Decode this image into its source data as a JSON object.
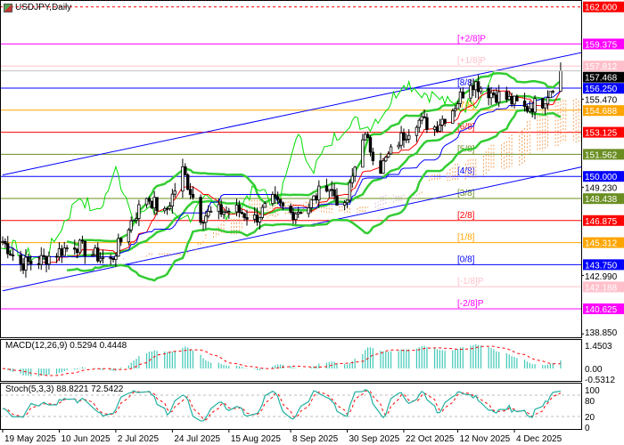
{
  "title": "USDJPY,Daily",
  "chart_data": {
    "type": "candlestick",
    "symbol": "USDJPY",
    "timeframe": "Daily",
    "price_range": [
      138.85,
      162.0
    ],
    "current_price": "157.468",
    "closes": [
      {
        "date": "2025-05-19",
        "close": 145.4
      },
      {
        "date": "2025-05-26",
        "close": 143.8
      },
      {
        "date": "2025-06-02",
        "close": 144.0
      },
      {
        "date": "2025-06-09",
        "close": 144.6
      },
      {
        "date": "2025-06-16",
        "close": 145.2
      },
      {
        "date": "2025-06-23",
        "close": 144.5
      },
      {
        "date": "2025-06-30",
        "close": 144.0
      },
      {
        "date": "2025-07-07",
        "close": 146.5
      },
      {
        "date": "2025-07-14",
        "close": 148.6
      },
      {
        "date": "2025-07-21",
        "close": 147.3
      },
      {
        "date": "2025-07-28",
        "close": 150.4
      },
      {
        "date": "2025-08-04",
        "close": 147.2
      },
      {
        "date": "2025-08-11",
        "close": 147.5
      },
      {
        "date": "2025-08-18",
        "close": 147.6
      },
      {
        "date": "2025-08-25",
        "close": 147.0
      },
      {
        "date": "2025-09-01",
        "close": 148.2
      },
      {
        "date": "2025-09-08",
        "close": 147.4
      },
      {
        "date": "2025-09-15",
        "close": 147.9
      },
      {
        "date": "2025-09-22",
        "close": 149.5
      },
      {
        "date": "2025-09-29",
        "close": 147.6
      },
      {
        "date": "2025-10-06",
        "close": 153.0
      },
      {
        "date": "2025-10-13",
        "close": 150.6
      },
      {
        "date": "2025-10-20",
        "close": 152.5
      },
      {
        "date": "2025-10-27",
        "close": 154.0
      },
      {
        "date": "2025-11-03",
        "close": 153.5
      },
      {
        "date": "2025-11-10",
        "close": 154.8
      },
      {
        "date": "2025-11-17",
        "close": 156.8
      },
      {
        "date": "2025-11-24",
        "close": 156.0
      },
      {
        "date": "2025-12-01",
        "close": 155.5
      },
      {
        "date": "2025-12-08",
        "close": 154.8
      },
      {
        "date": "2025-12-15",
        "close": 155.3
      },
      {
        "date": "2025-12-22",
        "close": 157.47
      }
    ],
    "murrey_levels": [
      {
        "price": 162.0,
        "label": "162.000",
        "tag": "",
        "color": "#ff0000",
        "dashed": true
      },
      {
        "price": 159.375,
        "label": "159.375",
        "tag": "[+2/8]P",
        "color": "#ff00ff"
      },
      {
        "price": 157.812,
        "label": "157.812",
        "tag": "[+1/8]P",
        "color": "#ffc0cb"
      },
      {
        "price": 156.25,
        "label": "156.250",
        "tag": "[8/8]",
        "color": "#0000ff"
      },
      {
        "price": 154.688,
        "label": "154.688",
        "tag": "[7/8]",
        "color": "#ffa500"
      },
      {
        "price": 153.125,
        "label": "153.125",
        "tag": "[6/8]",
        "color": "#ff0000"
      },
      {
        "price": 151.562,
        "label": "151.562",
        "tag": "[5/8]",
        "color": "#6b8e23"
      },
      {
        "price": 150.0,
        "label": "150.000",
        "tag": "[4/8]",
        "color": "#0000ff"
      },
      {
        "price": 148.438,
        "label": "148.438",
        "tag": "[3/8]",
        "color": "#6b8e23"
      },
      {
        "price": 146.875,
        "label": "146.875",
        "tag": "[2/8]",
        "color": "#ff0000"
      },
      {
        "price": 145.312,
        "label": "145.312",
        "tag": "[1/8]",
        "color": "#ffa500"
      },
      {
        "price": 143.75,
        "label": "143.750",
        "tag": "[0/8]",
        "color": "#0000ff"
      },
      {
        "price": 142.188,
        "label": "142.188",
        "tag": "[-1/8]P",
        "color": "#ffc0cb"
      },
      {
        "price": 140.625,
        "label": "140.625",
        "tag": "[-2/8]P",
        "color": "#ff00ff"
      }
    ],
    "price_ticks": [
      "155.470",
      "149.230",
      "142.990",
      "138.850"
    ],
    "trendlines": [
      {
        "from": {
          "date": "2025-05-19",
          "price": 150.1
        },
        "to": {
          "date": "2025-12-31",
          "price": 158.8
        },
        "color": "#0000ff"
      },
      {
        "from": {
          "date": "2025-05-19",
          "price": 141.9
        },
        "to": {
          "date": "2025-12-31",
          "price": 150.7
        },
        "color": "#0000ff"
      }
    ],
    "x_tick_labels": [
      {
        "date": "2025-05-19",
        "label": "19 May 2025"
      },
      {
        "date": "2025-06-10",
        "label": "10 Jun 2025"
      },
      {
        "date": "2025-07-02",
        "label": "2 Jul 2025"
      },
      {
        "date": "2025-07-24",
        "label": "24 Jul 2025"
      },
      {
        "date": "2025-08-15",
        "label": "15 Aug 2025"
      },
      {
        "date": "2025-09-08",
        "label": "8 Sep 2025"
      },
      {
        "date": "2025-09-30",
        "label": "30 Sep 2025"
      },
      {
        "date": "2025-10-22",
        "label": "22 Oct 2025"
      },
      {
        "date": "2025-11-12",
        "label": "12 Nov 2025"
      },
      {
        "date": "2025-12-04",
        "label": "4 Dec 2025"
      }
    ],
    "macd": {
      "label": "MACD(12,26,9) 0.5294 0.4448",
      "ticks": [
        "1.4503",
        "0.00",
        "-0.5312"
      ],
      "max": 1.4503,
      "min": -0.5312,
      "hist_color": "#40c8b8",
      "signal_color": "#ff0000"
    },
    "stoch": {
      "label": "Stoch(5,3,3) 88.8221 72.5422",
      "ticks": [
        "100",
        "80",
        "20",
        "0"
      ],
      "levels": [
        80,
        20
      ],
      "k_color": "#20b0a0",
      "d_color": "#ff0000"
    },
    "colors": {
      "bollinger": "#33cc33",
      "chikou": "#00dd00",
      "tenkan": "#ff0000",
      "kijun": "#0000ff",
      "cloud_up": "#f4a460",
      "cloud_down": "#d8bfd8"
    }
  }
}
